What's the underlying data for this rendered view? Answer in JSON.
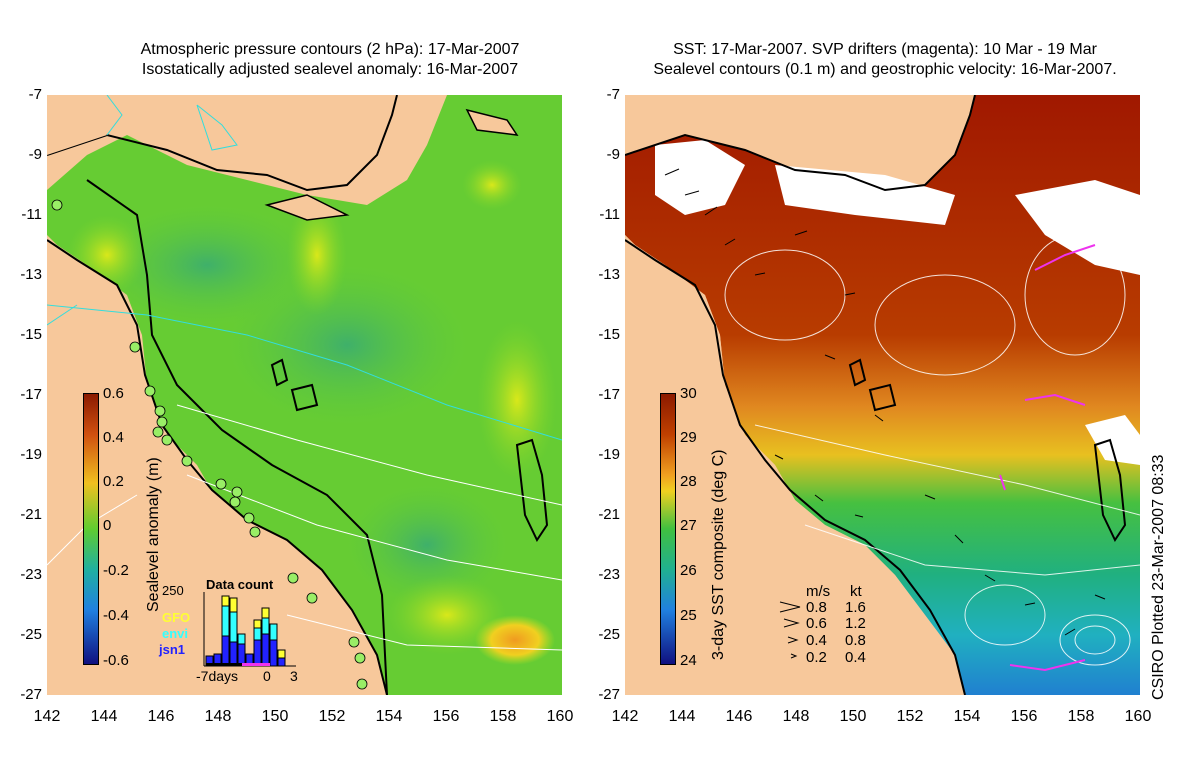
{
  "left_panel": {
    "title_line1": "Atmospheric pressure contours (2 hPa): 17-Mar-2007",
    "title_line2": "Isostatically adjusted sealevel anomaly: 16-Mar-2007",
    "colorbar_title": "Sealevel anomaly (m)",
    "colorbar_ticks": [
      "0.6",
      "0.4",
      "0.2",
      "0",
      "-0.2",
      "-0.4",
      "-0.6"
    ],
    "inset": {
      "title": "Data count",
      "y_max_label": "250",
      "legend": [
        {
          "label": "GFO",
          "color": "#ffff33"
        },
        {
          "label": "envi",
          "color": "#33ffff"
        },
        {
          "label": "jsn1",
          "color": "#2222ff"
        }
      ],
      "x_labels": [
        "-7days",
        "0",
        "3"
      ]
    }
  },
  "right_panel": {
    "title_line1": "SST: 17-Mar-2007. SVP drifters (magenta): 10 Mar - 19 Mar",
    "title_line2": "Sealevel contours (0.1 m) and geostrophic velocity: 16-Mar-2007.",
    "colorbar_title": "3-day SST composite (deg C)",
    "colorbar_ticks": [
      "30",
      "29",
      "28",
      "27",
      "26",
      "25",
      "24"
    ],
    "velocity_legend": {
      "header_ms": "m/s",
      "header_kt": "kt",
      "rows": [
        {
          "ms": "0.8",
          "kt": "1.6"
        },
        {
          "ms": "0.6",
          "kt": "1.2"
        },
        {
          "ms": "0.4",
          "kt": "0.8"
        },
        {
          "ms": "0.2",
          "kt": "0.4"
        }
      ]
    }
  },
  "axes": {
    "y_ticks": [
      "-7",
      "-9",
      "-11",
      "-13",
      "-15",
      "-17",
      "-19",
      "-21",
      "-23",
      "-25",
      "-27"
    ],
    "x_ticks": [
      "142",
      "144",
      "146",
      "148",
      "150",
      "152",
      "154",
      "156",
      "158",
      "160"
    ]
  },
  "footer": {
    "plotted_text": "CSIRO Plotted 23-Mar-2007 08:33"
  }
}
